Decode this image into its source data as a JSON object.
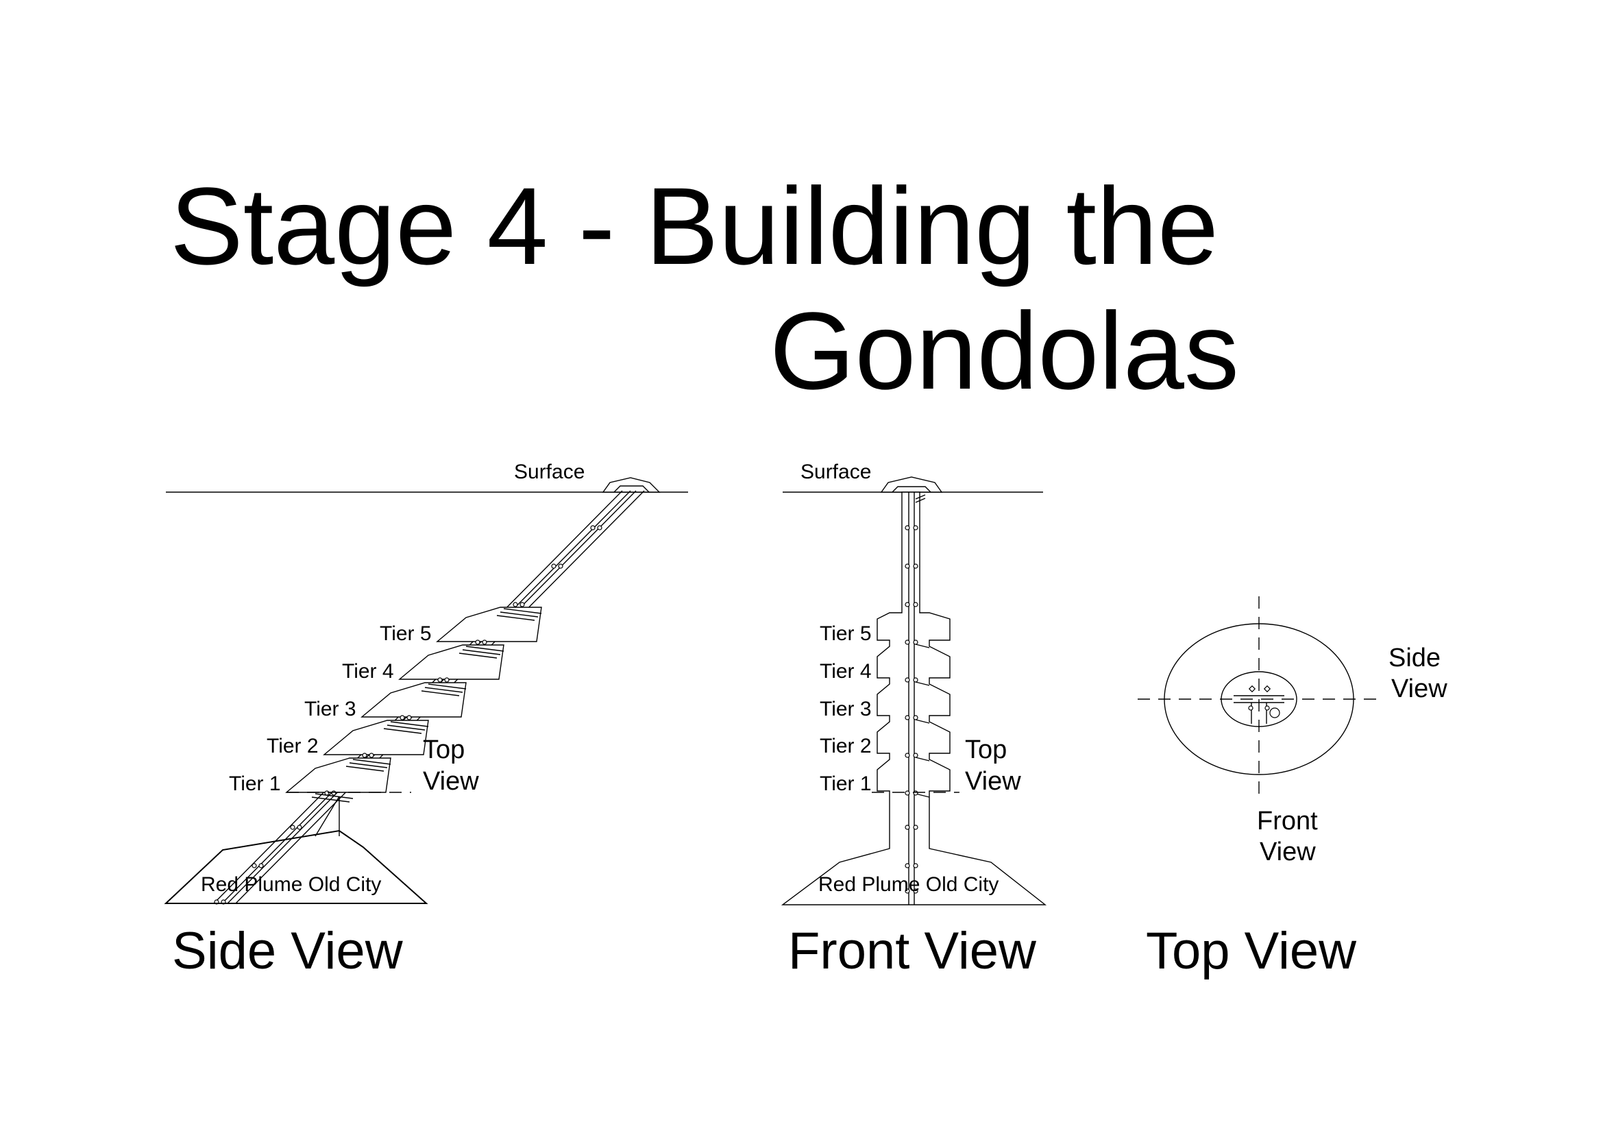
{
  "title": {
    "line1": "Stage 4 - Building the",
    "line2": "Gondolas"
  },
  "side_view": {
    "caption": "Side View",
    "surface_label": "Surface",
    "tiers": [
      "Tier 5",
      "Tier 4",
      "Tier 3",
      "Tier 2",
      "Tier 1"
    ],
    "top_view_label_1": "Top",
    "top_view_label_2": "View",
    "base_label": "Red Plume Old City"
  },
  "front_view": {
    "caption": "Front View",
    "surface_label": "Surface",
    "tiers": [
      "Tier 5",
      "Tier 4",
      "Tier 3",
      "Tier 2",
      "Tier 1"
    ],
    "top_view_label_1": "Top",
    "top_view_label_2": "View",
    "base_label": "Red Plume Old City"
  },
  "top_view": {
    "caption": "Top View",
    "side_view_label_1": "Side",
    "side_view_label_2": "View",
    "front_view_label_1": "Front",
    "front_view_label_2": "View"
  }
}
